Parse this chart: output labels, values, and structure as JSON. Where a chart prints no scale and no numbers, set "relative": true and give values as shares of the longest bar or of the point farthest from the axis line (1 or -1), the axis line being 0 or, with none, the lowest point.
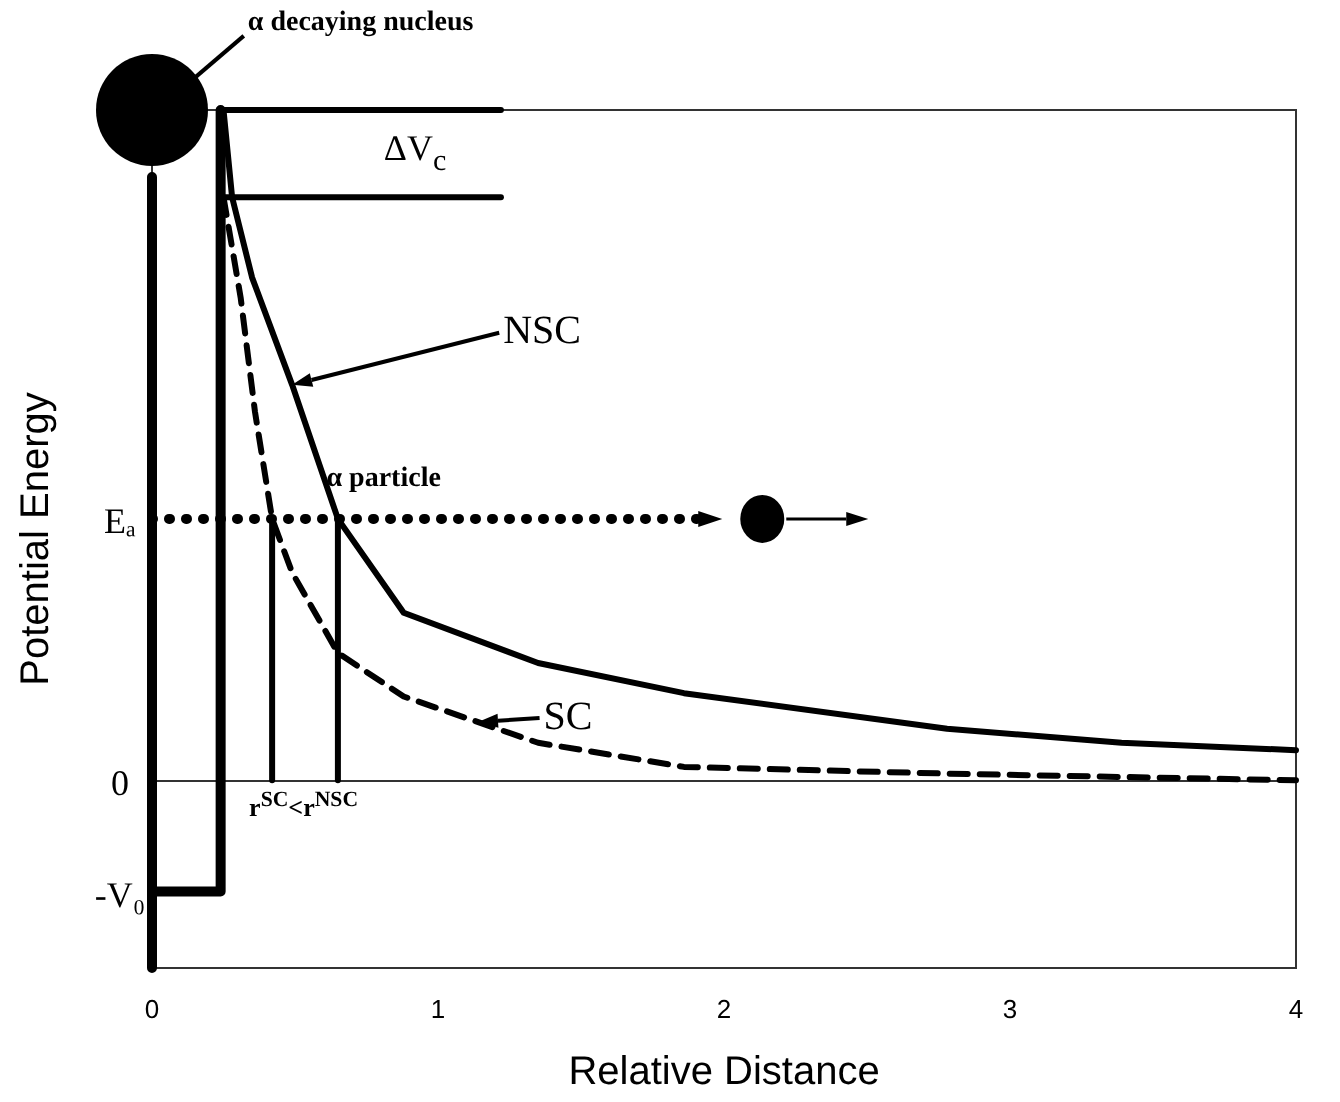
{
  "chart_data": {
    "type": "line",
    "xlabel": "Relative Distance",
    "ylabel": "Potential Energy",
    "relative": true,
    "marker": "none",
    "xlim": [
      0,
      4
    ],
    "xticks": [
      0,
      1,
      2,
      3,
      4
    ],
    "series": [
      {
        "color": "#000000",
        "line_style": "solid",
        "x": [
          0.24,
          0.24,
          0,
          0,
          0
        ],
        "values": [
          1.0,
          -0.166,
          -0.166,
          -0.28,
          0.9
        ]
      },
      {
        "color": "#000000",
        "line_style": "solid",
        "x": [
          0.25,
          0.28,
          0.35,
          0.49,
          0.65,
          0.88,
          1.35,
          1.86,
          2.78,
          3.39,
          4
        ],
        "values": [
          1.0,
          0.87,
          0.75,
          0.59,
          0.39,
          0.25,
          0.175,
          0.13,
          0.077,
          0.056,
          0.045
        ]
      },
      {
        "color": "#000000",
        "line_style": "dashed",
        "x": [
          0.25,
          0.31,
          0.36,
          0.42,
          0.49,
          0.65,
          0.88,
          1.35,
          1.86,
          2.78,
          4
        ],
        "values": [
          0.87,
          0.72,
          0.55,
          0.39,
          0.31,
          0.19,
          0.125,
          0.056,
          0.02,
          0.01,
          0
        ]
      },
      {
        "color": "#000000",
        "line_style": "solid",
        "x": [
          0.24,
          1.22
        ],
        "values": [
          1.0,
          1.0
        ]
      },
      {
        "color": "#000000",
        "line_style": "solid",
        "x": [
          0.24,
          1.22
        ],
        "values": [
          0.87,
          0.87
        ]
      },
      {
        "color": "#000000",
        "line_style": "solid",
        "x": [
          0.42,
          0.42
        ],
        "values": [
          0.39,
          0
        ]
      },
      {
        "color": "#000000",
        "line_style": "solid",
        "x": [
          0.65,
          0.65
        ],
        "values": [
          0.39,
          0
        ]
      }
    ],
    "annotations": [
      "α decaying nucleus",
      "ΔV$_{c}$",
      "NSC",
      "α particle",
      {
        "text": "SC",
        "x": 1.14,
        "y": 0.087
      },
      "r$^{SC}$<r$^{NSC}$",
      "Eₐ",
      "0",
      "-V₀"
    ]
  }
}
